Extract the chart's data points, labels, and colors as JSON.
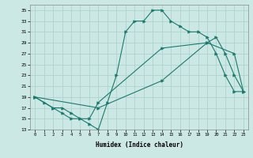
{
  "xlabel": "Humidex (Indice chaleur)",
  "xlim": [
    -0.5,
    23.5
  ],
  "ylim": [
    13,
    36
  ],
  "xticks": [
    0,
    1,
    2,
    3,
    4,
    5,
    6,
    7,
    8,
    9,
    10,
    11,
    12,
    13,
    14,
    15,
    16,
    17,
    18,
    19,
    20,
    21,
    22,
    23
  ],
  "yticks": [
    13,
    15,
    17,
    19,
    21,
    23,
    25,
    27,
    29,
    31,
    33,
    35
  ],
  "background_color": "#cce8e4",
  "grid_color": "#aacfcb",
  "line_color": "#1a7a6e",
  "line1_x": [
    0,
    1,
    2,
    3,
    4,
    5,
    6,
    7,
    8,
    9,
    10,
    11,
    12,
    13,
    14,
    15,
    16,
    17,
    18,
    19,
    20,
    21,
    22,
    23
  ],
  "line1_y": [
    19,
    18,
    17,
    16,
    15,
    15,
    14,
    13,
    18,
    23,
    31,
    33,
    33,
    35,
    35,
    33,
    32,
    31,
    31,
    30,
    27,
    23,
    20,
    20
  ],
  "line2_x": [
    0,
    2,
    3,
    4,
    5,
    6,
    7,
    14,
    19,
    20,
    21,
    22,
    23
  ],
  "line2_y": [
    19,
    17,
    17,
    16,
    15,
    15,
    18,
    28,
    29,
    30,
    27,
    23,
    20
  ],
  "line3_x": [
    0,
    7,
    14,
    19,
    22,
    23
  ],
  "line3_y": [
    19,
    17,
    22,
    29,
    27,
    20
  ],
  "figsize": [
    3.2,
    2.0
  ],
  "dpi": 100
}
